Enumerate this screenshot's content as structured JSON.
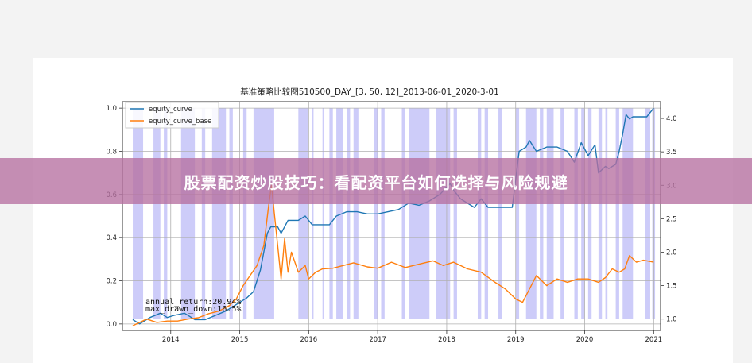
{
  "banner": {
    "headline": "股票配资炒股技巧：看配资平台如何选择与风险规避"
  },
  "chart_data": {
    "type": "line",
    "title": "基准策略比较图510500_DAY_[3, 50, 12]_2013-06-01_2020-3-01",
    "x_ticks": [
      "2014",
      "2015",
      "2016",
      "2017",
      "2018",
      "2019",
      "2020",
      "2021"
    ],
    "left_axis": {
      "ylim": [
        -0.03,
        1.03
      ],
      "ticks": [
        "0.0",
        "0.2",
        "0.4",
        "0.6",
        "0.8",
        "1.0"
      ]
    },
    "right_axis": {
      "ylim": [
        0.83,
        4.25
      ],
      "ticks": [
        "1.0",
        "1.5",
        "2.0",
        "2.5",
        "3.0",
        "3.5",
        "4.0"
      ]
    },
    "grid": true,
    "legend_position": "top-left",
    "series": [
      {
        "name": "equity_curve",
        "axis": "left",
        "color": "#1f77b4",
        "x": [
          2013.45,
          2013.55,
          2013.7,
          2013.85,
          2013.95,
          2014.05,
          2014.2,
          2014.35,
          2014.5,
          2014.65,
          2014.8,
          2014.9,
          2015.0,
          2015.1,
          2015.2,
          2015.3,
          2015.4,
          2015.45,
          2015.55,
          2015.6,
          2015.65,
          2015.7,
          2015.85,
          2015.95,
          2016.05,
          2016.2,
          2016.3,
          2016.4,
          2016.55,
          2016.7,
          2016.85,
          2017.0,
          2017.15,
          2017.3,
          2017.45,
          2017.6,
          2017.75,
          2017.9,
          2018.05,
          2018.1,
          2018.2,
          2018.3,
          2018.4,
          2018.5,
          2018.6,
          2018.8,
          2018.95,
          2019.05,
          2019.15,
          2019.2,
          2019.3,
          2019.45,
          2019.6,
          2019.75,
          2019.85,
          2019.95,
          2020.05,
          2020.15,
          2020.2,
          2020.3,
          2020.35,
          2020.45,
          2020.5,
          2020.55,
          2020.6,
          2020.65,
          2020.7,
          2020.8,
          2020.9,
          2021.0
        ],
        "values": [
          0.02,
          0.0,
          0.03,
          0.05,
          0.03,
          0.04,
          0.05,
          0.02,
          0.02,
          0.04,
          0.06,
          0.08,
          0.1,
          0.12,
          0.15,
          0.25,
          0.42,
          0.45,
          0.45,
          0.42,
          0.45,
          0.48,
          0.48,
          0.5,
          0.46,
          0.46,
          0.46,
          0.5,
          0.52,
          0.52,
          0.51,
          0.51,
          0.52,
          0.53,
          0.56,
          0.55,
          0.57,
          0.6,
          0.65,
          0.62,
          0.58,
          0.56,
          0.54,
          0.58,
          0.54,
          0.54,
          0.54,
          0.8,
          0.82,
          0.85,
          0.8,
          0.82,
          0.82,
          0.8,
          0.75,
          0.84,
          0.78,
          0.83,
          0.7,
          0.73,
          0.72,
          0.74,
          0.8,
          0.88,
          0.97,
          0.95,
          0.96,
          0.96,
          0.96,
          1.0
        ]
      },
      {
        "name": "equity_curve_base",
        "axis": "right",
        "color": "#ff7f0e",
        "x": [
          2013.45,
          2013.55,
          2013.65,
          2013.8,
          2013.95,
          2014.1,
          2014.25,
          2014.4,
          2014.55,
          2014.7,
          2014.85,
          2014.95,
          2015.05,
          2015.15,
          2015.25,
          2015.35,
          2015.42,
          2015.46,
          2015.5,
          2015.55,
          2015.6,
          2015.65,
          2015.7,
          2015.75,
          2015.85,
          2015.95,
          2016.0,
          2016.1,
          2016.2,
          2016.35,
          2016.5,
          2016.65,
          2016.85,
          2017.0,
          2017.2,
          2017.4,
          2017.6,
          2017.8,
          2017.95,
          2018.1,
          2018.3,
          2018.5,
          2018.7,
          2018.85,
          2019.0,
          2019.1,
          2019.2,
          2019.3,
          2019.45,
          2019.6,
          2019.75,
          2019.9,
          2020.05,
          2020.2,
          2020.3,
          2020.4,
          2020.5,
          2020.58,
          2020.65,
          2020.75,
          2020.85,
          2021.0
        ],
        "values": [
          0.9,
          0.95,
          1.0,
          0.95,
          0.97,
          0.97,
          1.0,
          1.02,
          1.08,
          1.12,
          1.2,
          1.3,
          1.5,
          1.65,
          1.8,
          2.1,
          2.7,
          3.0,
          2.6,
          2.1,
          1.6,
          2.2,
          1.7,
          2.0,
          1.7,
          1.8,
          1.6,
          1.7,
          1.75,
          1.76,
          1.8,
          1.84,
          1.78,
          1.76,
          1.85,
          1.77,
          1.82,
          1.87,
          1.8,
          1.85,
          1.75,
          1.7,
          1.55,
          1.45,
          1.3,
          1.25,
          1.45,
          1.65,
          1.5,
          1.6,
          1.55,
          1.6,
          1.6,
          1.55,
          1.62,
          1.75,
          1.7,
          1.75,
          1.95,
          1.85,
          1.88,
          1.85
        ]
      }
    ],
    "shaded_intervals": [
      [
        2013.45,
        2013.6
      ],
      [
        2013.75,
        2013.85
      ],
      [
        2013.9,
        2013.95
      ],
      [
        2014.15,
        2014.35
      ],
      [
        2014.45,
        2014.5
      ],
      [
        2014.6,
        2014.8
      ],
      [
        2014.85,
        2014.9
      ],
      [
        2015.05,
        2015.1
      ],
      [
        2015.2,
        2015.5
      ],
      [
        2015.85,
        2016.0
      ],
      [
        2016.05,
        2016.07
      ],
      [
        2016.2,
        2016.22
      ],
      [
        2016.3,
        2016.35
      ],
      [
        2016.4,
        2016.5
      ],
      [
        2016.55,
        2016.6
      ],
      [
        2016.65,
        2016.72
      ],
      [
        2016.95,
        2017.0
      ],
      [
        2017.05,
        2017.1
      ],
      [
        2017.35,
        2017.4
      ],
      [
        2017.45,
        2017.75
      ],
      [
        2017.85,
        2018.05
      ],
      [
        2018.1,
        2018.15
      ],
      [
        2018.45,
        2018.5
      ],
      [
        2018.55,
        2018.6
      ],
      [
        2018.75,
        2018.8
      ],
      [
        2019.0,
        2019.05
      ],
      [
        2019.15,
        2019.3
      ],
      [
        2019.35,
        2019.4
      ],
      [
        2019.45,
        2019.55
      ],
      [
        2019.65,
        2019.7
      ],
      [
        2019.85,
        2019.9
      ],
      [
        2019.95,
        2020.0
      ],
      [
        2020.05,
        2020.1
      ],
      [
        2020.2,
        2020.25
      ],
      [
        2020.3,
        2020.33
      ],
      [
        2020.45,
        2020.5
      ],
      [
        2020.55,
        2020.7
      ],
      [
        2020.88,
        2020.95
      ],
      [
        2020.98,
        2021.02
      ]
    ],
    "annotations": [
      "annual_return:20.94%",
      "max_drawn_down:16.5%"
    ]
  }
}
